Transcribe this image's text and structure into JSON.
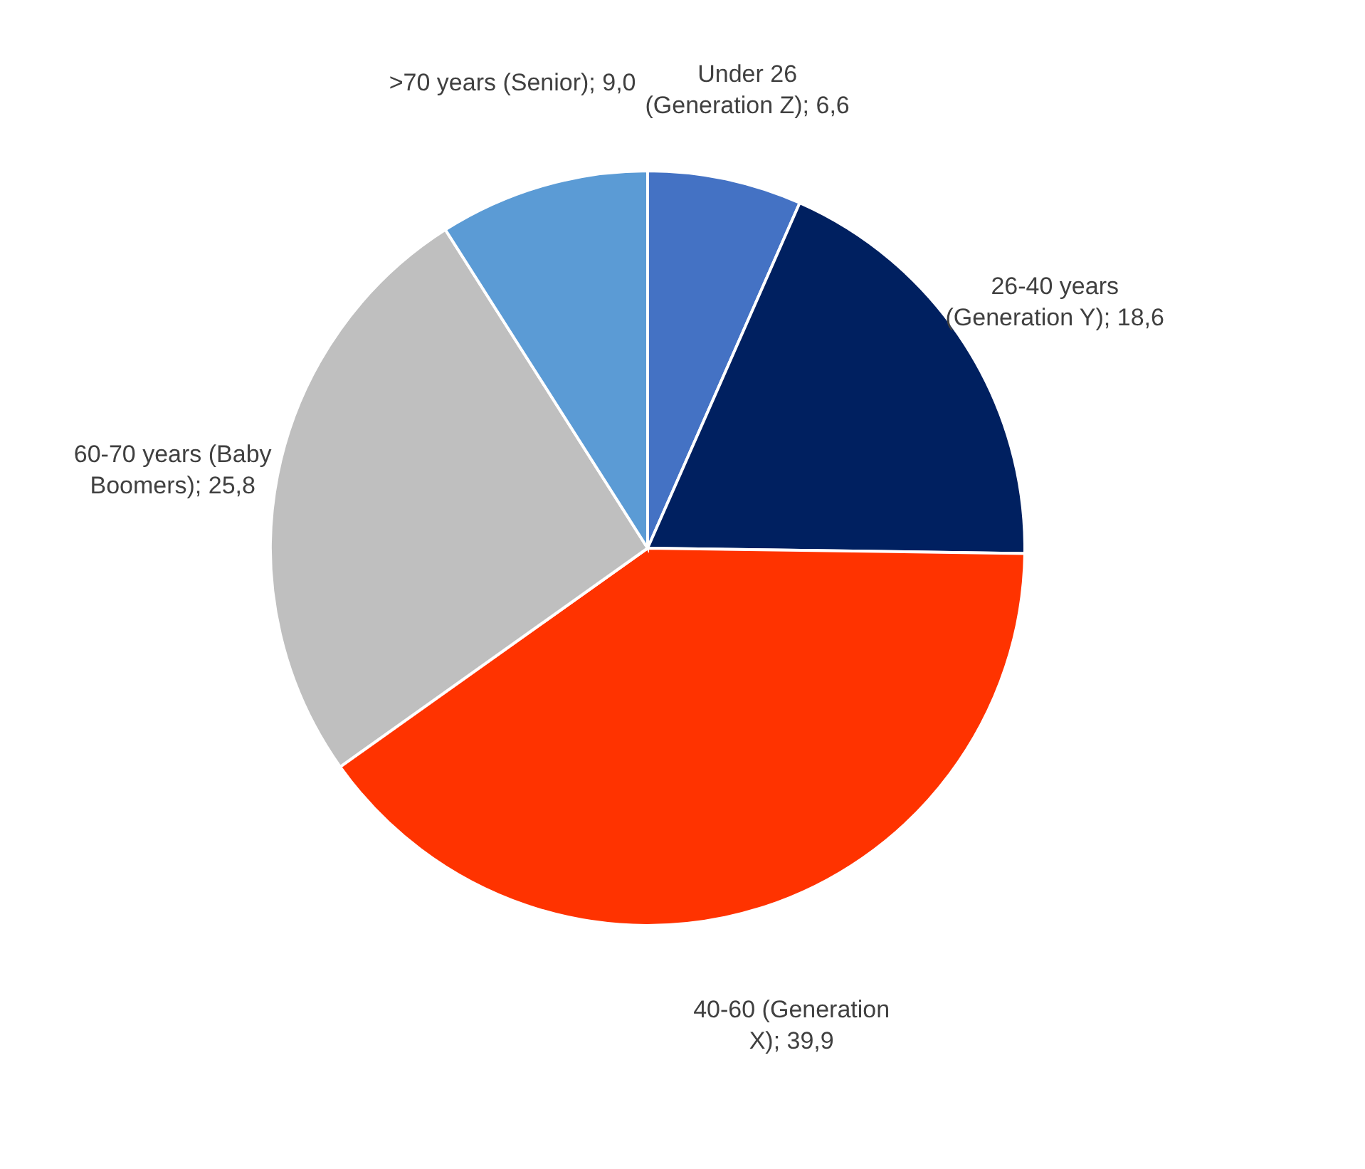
{
  "chart_data": {
    "type": "pie",
    "categories": [
      "Under 26 (Generation Z)",
      "26-40 years (Generation Y)",
      "40-60 (Generation X)",
      "60-70 years (Baby Boomers)",
      ">70 years (Senior)"
    ],
    "values": [
      6.6,
      18.6,
      39.9,
      25.8,
      9.0
    ],
    "value_labels": [
      "6,6",
      "18,6",
      "39,9",
      "25,8",
      "9,0"
    ],
    "colors": [
      "#4472c4",
      "#002060",
      "#ff3300",
      "#bfbfbf",
      "#5b9bd5"
    ],
    "legend": false
  }
}
